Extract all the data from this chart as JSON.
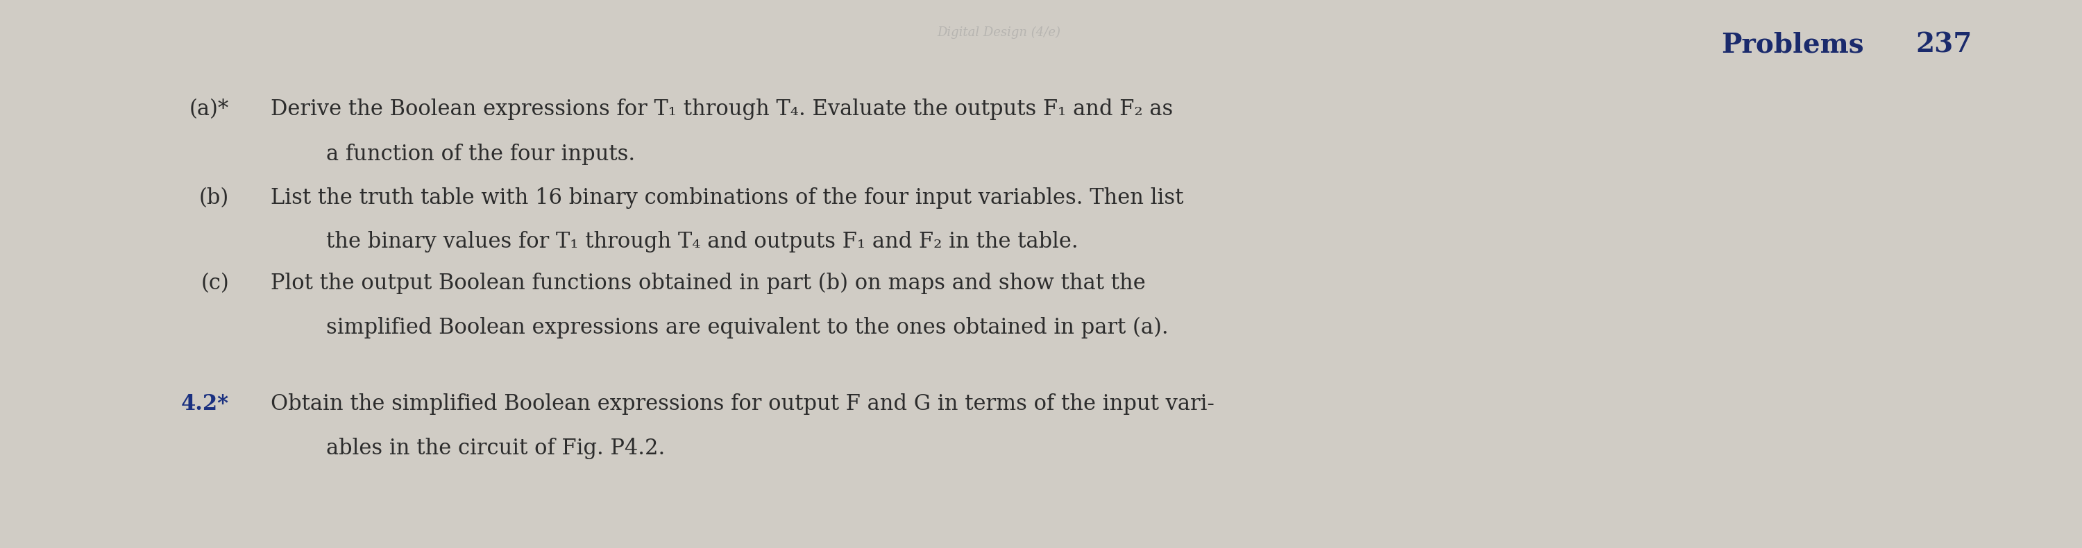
{
  "background_color": "#d0ccc5",
  "page_width": 30.0,
  "page_height": 7.9,
  "header_text": "Problems",
  "header_number": "237",
  "header_color": "#1a2a6c",
  "faded_text": "Digital Design (4/e)",
  "label_a": "(a)*",
  "label_b": "(b)",
  "label_c": "(c)",
  "label_42": "4.2*",
  "label_color": "#2c2c2c",
  "label_42_color": "#1a3080",
  "text_color": "#2c2c2c",
  "line_a1": "Derive the Boolean expressions for T₁ through T₄. Evaluate the outputs F₁ and F₂ as",
  "line_a2": "a function of the four inputs.",
  "line_b1": "List the truth table with 16 binary combinations of the four input variables. Then list",
  "line_b2": "the binary values for T₁ through T₄ and outputs F₁ and F₂ in the table.",
  "line_c1": "Plot the output Boolean functions obtained in part (b) on maps and show that the",
  "line_c2": "simplified Boolean expressions are equivalent to the ones obtained in part (a).",
  "line_42_1": "Obtain the simplified Boolean expressions for output F and G in terms of the input vari-",
  "line_42_2": "ables in the circuit of Fig. P4.2."
}
